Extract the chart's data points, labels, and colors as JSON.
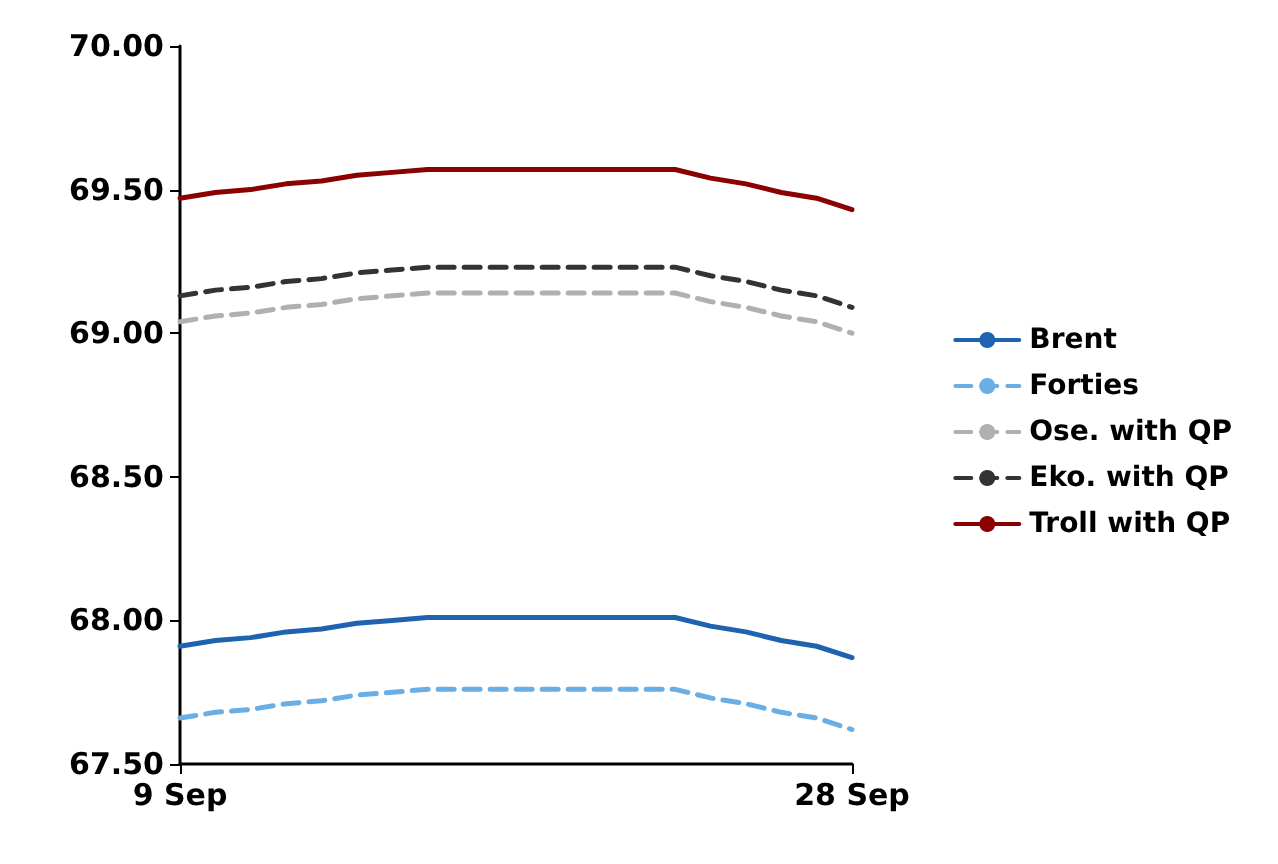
{
  "chart_data": {
    "type": "line",
    "x": [
      "--09-09",
      "--09-10",
      "--09-11",
      "--09-12",
      "--09-13",
      "--09-14",
      "--09-15",
      "--09-16",
      "--09-17",
      "--09-18",
      "--09-19",
      "--09-20",
      "--09-21",
      "--09-22",
      "--09-23",
      "--09-24",
      "--09-25",
      "--09-26",
      "--09-27",
      "--09-28"
    ],
    "series": [
      {
        "name": "Brent",
        "color": "#1f63b0",
        "line_style": "solid",
        "values": [
          67.91,
          67.93,
          67.94,
          67.96,
          67.97,
          67.99,
          68.0,
          68.01,
          68.01,
          68.01,
          68.01,
          68.01,
          68.01,
          68.01,
          68.01,
          67.98,
          67.96,
          67.93,
          67.91,
          67.87
        ]
      },
      {
        "name": "Forties",
        "color": "#6aaee6",
        "line_style": "dashed",
        "values": [
          67.66,
          67.68,
          67.69,
          67.71,
          67.72,
          67.74,
          67.75,
          67.76,
          67.76,
          67.76,
          67.76,
          67.76,
          67.76,
          67.76,
          67.76,
          67.73,
          67.71,
          67.68,
          67.66,
          67.62
        ]
      },
      {
        "name": "Ose. with QP",
        "color": "#b0b0b0",
        "line_style": "dashed",
        "values": [
          69.04,
          69.06,
          69.07,
          69.09,
          69.1,
          69.12,
          69.13,
          69.14,
          69.14,
          69.14,
          69.14,
          69.14,
          69.14,
          69.14,
          69.14,
          69.11,
          69.09,
          69.06,
          69.04,
          69.0
        ]
      },
      {
        "name": "Eko. with QP",
        "color": "#333333",
        "line_style": "dashed",
        "values": [
          69.13,
          69.15,
          69.16,
          69.18,
          69.19,
          69.21,
          69.22,
          69.23,
          69.23,
          69.23,
          69.23,
          69.23,
          69.23,
          69.23,
          69.23,
          69.2,
          69.18,
          69.15,
          69.13,
          69.09
        ]
      },
      {
        "name": "Troll with QP",
        "color": "#8b0000",
        "line_style": "solid",
        "values": [
          69.47,
          69.49,
          69.5,
          69.52,
          69.53,
          69.55,
          69.56,
          69.57,
          69.57,
          69.57,
          69.57,
          69.57,
          69.57,
          69.57,
          69.57,
          69.54,
          69.52,
          69.49,
          69.47,
          69.43
        ]
      }
    ],
    "xlim": [
      "--09-09",
      "--09-28"
    ],
    "xticks": [
      {
        "value": "--09-09",
        "label": "9 Sep"
      },
      {
        "value": "--09-28",
        "label": "28 Sep"
      }
    ],
    "ylim": [
      67.5,
      70.0
    ],
    "yticks": [
      {
        "value": 67.5,
        "label": "67.50"
      },
      {
        "value": 68.0,
        "label": "68.00"
      },
      {
        "value": 68.5,
        "label": "68.50"
      },
      {
        "value": 69.0,
        "label": "69.00"
      },
      {
        "value": 69.5,
        "label": "69.50"
      },
      {
        "value": 70.0,
        "label": "70.00"
      }
    ],
    "grid": false,
    "legend": "right",
    "marker": "none"
  }
}
